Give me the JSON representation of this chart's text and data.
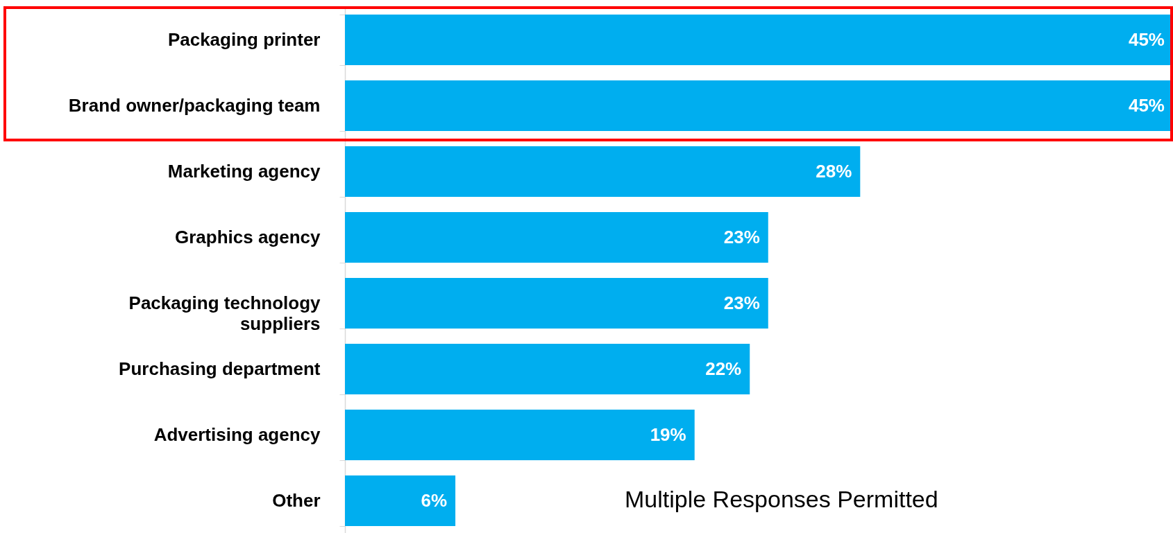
{
  "chart_data": {
    "type": "bar",
    "orientation": "horizontal",
    "categories": [
      "Packaging printer",
      "Brand owner/packaging team",
      "Marketing agency",
      "Graphics agency",
      "Packaging technology suppliers",
      "Purchasing department",
      "Advertising agency",
      "Other"
    ],
    "values": [
      45,
      45,
      28,
      23,
      23,
      22,
      19,
      6
    ],
    "color": "#00aeef",
    "value_labels": [
      "45%",
      "45%",
      "28%",
      "23%",
      "23%",
      "22%",
      "19%",
      "6%"
    ],
    "annotations": [
      "Multiple Responses Permitted"
    ],
    "grid": false
  }
}
